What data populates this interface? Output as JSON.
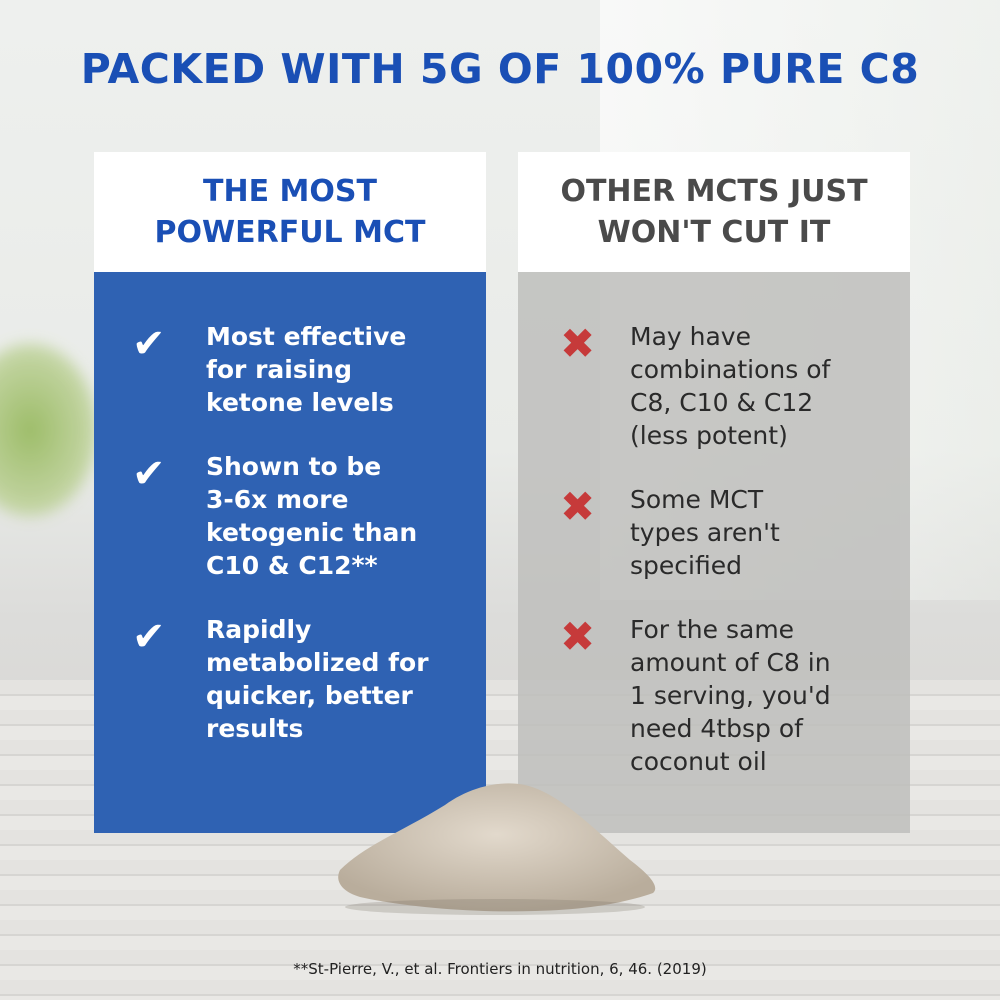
{
  "title": "PACKED WITH 5G OF 100% PURE C8",
  "left_card": {
    "heading": "THE MOST\nPOWERFUL MCT",
    "icon": "checkmark-icon",
    "items": [
      {
        "text": "Most effective\nfor raising\nketone levels"
      },
      {
        "text": "Shown to be\n3-6x more\nketogenic than\nC10 & C12**"
      },
      {
        "text": "Rapidly\nmetabolized for\nquicker, better\nresults"
      }
    ]
  },
  "right_card": {
    "heading": "OTHER MCTS JUST\nWON'T CUT IT",
    "icon": "x-mark-icon",
    "items": [
      {
        "text": "May have\ncombinations of\nC8, C10 & C12\n(less potent)"
      },
      {
        "text": "Some MCT\ntypes aren't\nspecified"
      },
      {
        "text": "For the same\namount of C8 in\n1 serving, you'd\nneed 4tbsp of\ncoconut oil"
      }
    ]
  },
  "citation": "**St-Pierre, V., et al. Frontiers in nutrition, 6, 46. (2019)",
  "colors": {
    "brand_blue": "#1a4fb5",
    "card_blue": "#2f62b3",
    "x_red": "#c63a3a"
  }
}
